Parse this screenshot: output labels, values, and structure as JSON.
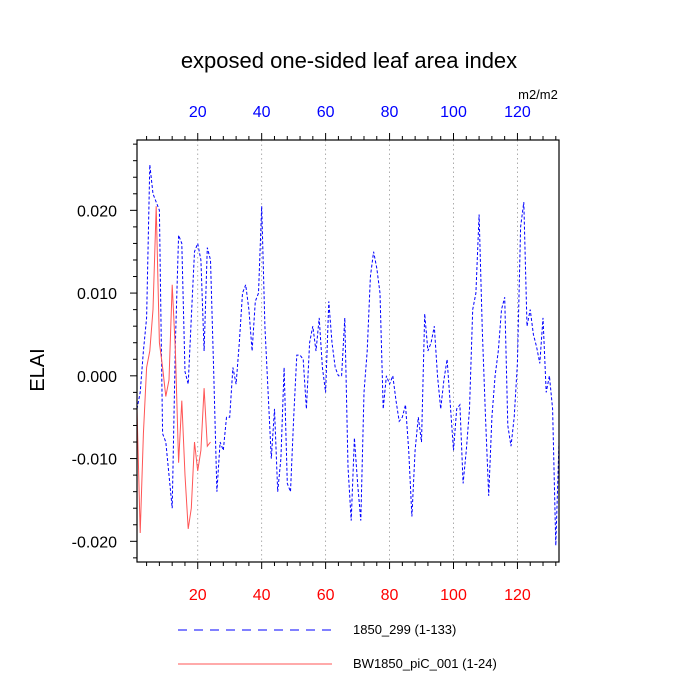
{
  "chart_data": {
    "type": "line",
    "title": "exposed one-sided leaf area index",
    "ylabel": "ELAI",
    "units": "m2/m2",
    "xlim": [
      1,
      133
    ],
    "ylim": [
      -0.0225,
      0.0285
    ],
    "x_ticks": [
      20,
      40,
      60,
      80,
      100,
      120
    ],
    "x_tick_labels": [
      "20",
      "40",
      "60",
      "80",
      "100",
      "120"
    ],
    "y_ticks": [
      -0.02,
      -0.01,
      0.0,
      0.01,
      0.02
    ],
    "y_tick_labels": [
      "-0.020",
      "-0.010",
      "0.000",
      "0.010",
      "0.020"
    ],
    "top_axis_color": "#0000ff",
    "bottom_axis_color": "#ff0000",
    "grid": "vertical dotted at x ticks",
    "legend_position": "bottom",
    "series": [
      {
        "name": "1850_299 (1-133)",
        "color": "#0000ff",
        "dash": "dashed",
        "x_start": 1,
        "values": [
          -0.004,
          -0.002,
          0.003,
          0.007,
          0.0255,
          0.022,
          0.021,
          0.02,
          -0.007,
          -0.008,
          -0.012,
          -0.016,
          0.004,
          0.017,
          0.016,
          0.0005,
          -0.001,
          0.007,
          0.015,
          0.016,
          0.014,
          0.003,
          0.0155,
          0.014,
          0.0005,
          -0.014,
          -0.008,
          -0.009,
          -0.005,
          -0.005,
          0.001,
          -0.001,
          0.004,
          0.01,
          0.011,
          0.008,
          0.003,
          0.009,
          0.01,
          0.0205,
          0.006,
          -0.002,
          -0.01,
          -0.004,
          -0.014,
          -0.01,
          0.001,
          -0.013,
          -0.014,
          -0.005,
          0.0025,
          0.0025,
          0.002,
          -0.004,
          0.004,
          0.006,
          0.003,
          0.007,
          0.001,
          -0.002,
          0.009,
          0.004,
          0.001,
          0.0,
          0.0,
          0.007,
          -0.011,
          -0.0175,
          -0.0075,
          -0.013,
          -0.0175,
          -0.002,
          0.003,
          0.012,
          0.015,
          0.013,
          0.01,
          -0.004,
          0.0,
          -0.001,
          0.0,
          -0.003,
          -0.0055,
          -0.005,
          -0.0035,
          -0.009,
          -0.017,
          -0.009,
          -0.005,
          -0.008,
          0.0075,
          0.003,
          0.004,
          0.006,
          0.0,
          -0.004,
          -0.0005,
          0.002,
          -0.0035,
          -0.009,
          -0.004,
          -0.0035,
          -0.013,
          -0.009,
          -0.004,
          0.008,
          0.01,
          0.0195,
          0.0055,
          -0.005,
          -0.0145,
          -0.005,
          0.0,
          0.003,
          0.008,
          0.0095,
          -0.006,
          -0.0085,
          -0.005,
          0.0015,
          0.018,
          0.021,
          0.006,
          0.008,
          0.005,
          0.0035,
          0.0015,
          0.007,
          -0.002,
          0.0,
          -0.004,
          -0.0205,
          -0.008
        ]
      },
      {
        "name": "BW1850_piC_001 (1-24)",
        "color": "#ff5555",
        "dash": "solid",
        "x_start": 1,
        "values": [
          -0.004,
          -0.019,
          -0.007,
          0.001,
          0.003,
          0.008,
          0.0205,
          0.004,
          0.001,
          -0.0025,
          -0.0005,
          0.011,
          0.003,
          -0.0105,
          -0.003,
          -0.012,
          -0.0185,
          -0.016,
          -0.008,
          -0.0115,
          -0.009,
          -0.0015,
          -0.0085,
          -0.008
        ]
      }
    ]
  }
}
